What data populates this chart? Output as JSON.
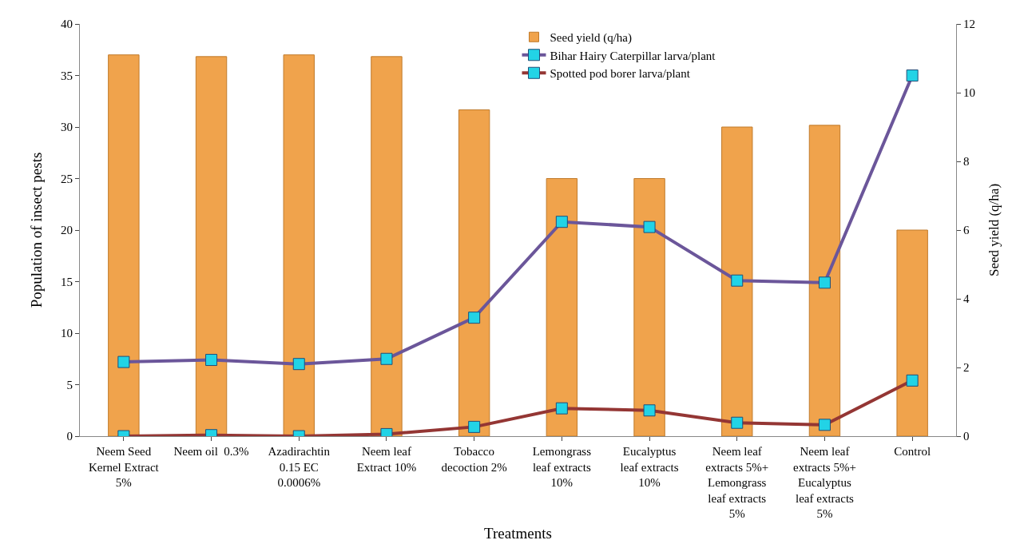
{
  "chart_data": {
    "type": "bar",
    "xlabel": "Treatments",
    "ylabel": "Population of insect pests",
    "y2label": "Seed yield (q/ha)",
    "categories": [
      "Neem Seed\nKernel Extract\n5%",
      "Neem oil  0.3%",
      "Azadirachtin\n0.15 EC\n0.0006%",
      "Neem leaf\nExtract 10%",
      "Tobacco\ndecoction 2%",
      "Lemongrass\nleaf extracts\n10%",
      "Eucalyptus\nleaf extracts\n10%",
      "Neem leaf\nextracts 5%+\nLemongrass\nleaf extracts\n5%",
      "Neem leaf\nextracts 5%+\nEucalyptus\nleaf extracts\n5%",
      "Control"
    ],
    "series": [
      {
        "name": "Seed yield (q/ha)",
        "axis": "y2",
        "color": "#f0a34c",
        "values": [
          11.1,
          11.05,
          11.1,
          11.05,
          9.5,
          7.5,
          7.5,
          9.0,
          9.05,
          6.0
        ]
      },
      {
        "name": "Bihar Hairy Caterpillar larva/plant",
        "type": "line",
        "color": "#6b569a",
        "marker": "square",
        "values": [
          7.2,
          7.4,
          7.0,
          7.5,
          11.5,
          20.8,
          20.3,
          15.1,
          14.9,
          35.0
        ]
      },
      {
        "name": "Spotted pod borer larva/plant",
        "type": "line",
        "color": "#943634",
        "marker": "square",
        "values": [
          0.0,
          0.1,
          0.0,
          0.2,
          0.9,
          2.7,
          2.5,
          1.3,
          1.1,
          5.4
        ]
      }
    ],
    "ylim": [
      0,
      40
    ],
    "yticks": [
      0,
      5,
      10,
      15,
      20,
      25,
      30,
      35,
      40
    ],
    "y2lim": [
      0,
      12
    ],
    "y2ticks": [
      0,
      2,
      4,
      6,
      8,
      10,
      12
    ],
    "grid": false,
    "legend": "top right"
  }
}
